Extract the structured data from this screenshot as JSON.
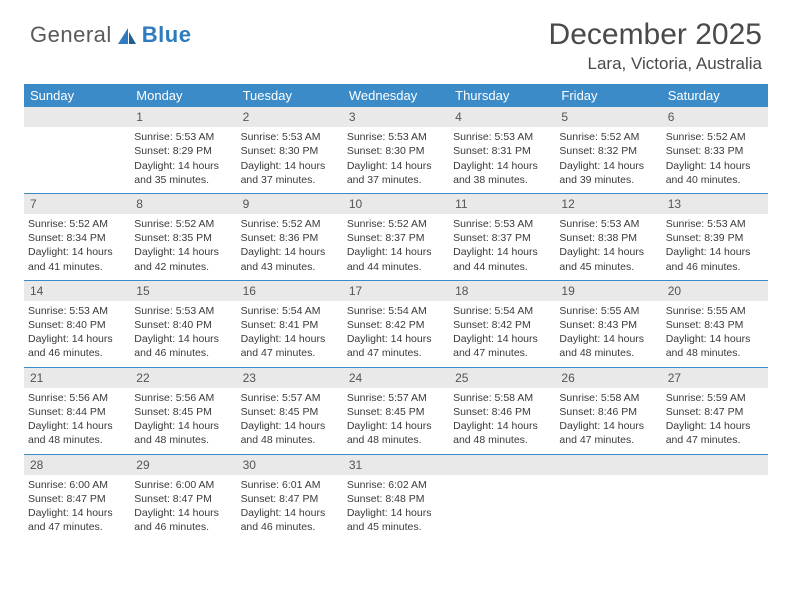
{
  "logo": {
    "part1": "General",
    "part2": "Blue"
  },
  "title": "December 2025",
  "location": "Lara, Victoria, Australia",
  "colors": {
    "header_bg": "#3b8bc9",
    "header_text": "#ffffff",
    "daynum_bg": "#e9e9e9",
    "separator": "#3b8bc9",
    "text": "#3a3a3a",
    "logo_gray": "#5a5a5a",
    "logo_blue": "#2f7bbf"
  },
  "day_headers": [
    "Sunday",
    "Monday",
    "Tuesday",
    "Wednesday",
    "Thursday",
    "Friday",
    "Saturday"
  ],
  "weeks": [
    [
      null,
      {
        "n": "1",
        "sr": "Sunrise: 5:53 AM",
        "ss": "Sunset: 8:29 PM",
        "d1": "Daylight: 14 hours",
        "d2": "and 35 minutes."
      },
      {
        "n": "2",
        "sr": "Sunrise: 5:53 AM",
        "ss": "Sunset: 8:30 PM",
        "d1": "Daylight: 14 hours",
        "d2": "and 37 minutes."
      },
      {
        "n": "3",
        "sr": "Sunrise: 5:53 AM",
        "ss": "Sunset: 8:30 PM",
        "d1": "Daylight: 14 hours",
        "d2": "and 37 minutes."
      },
      {
        "n": "4",
        "sr": "Sunrise: 5:53 AM",
        "ss": "Sunset: 8:31 PM",
        "d1": "Daylight: 14 hours",
        "d2": "and 38 minutes."
      },
      {
        "n": "5",
        "sr": "Sunrise: 5:52 AM",
        "ss": "Sunset: 8:32 PM",
        "d1": "Daylight: 14 hours",
        "d2": "and 39 minutes."
      },
      {
        "n": "6",
        "sr": "Sunrise: 5:52 AM",
        "ss": "Sunset: 8:33 PM",
        "d1": "Daylight: 14 hours",
        "d2": "and 40 minutes."
      }
    ],
    [
      {
        "n": "7",
        "sr": "Sunrise: 5:52 AM",
        "ss": "Sunset: 8:34 PM",
        "d1": "Daylight: 14 hours",
        "d2": "and 41 minutes."
      },
      {
        "n": "8",
        "sr": "Sunrise: 5:52 AM",
        "ss": "Sunset: 8:35 PM",
        "d1": "Daylight: 14 hours",
        "d2": "and 42 minutes."
      },
      {
        "n": "9",
        "sr": "Sunrise: 5:52 AM",
        "ss": "Sunset: 8:36 PM",
        "d1": "Daylight: 14 hours",
        "d2": "and 43 minutes."
      },
      {
        "n": "10",
        "sr": "Sunrise: 5:52 AM",
        "ss": "Sunset: 8:37 PM",
        "d1": "Daylight: 14 hours",
        "d2": "and 44 minutes."
      },
      {
        "n": "11",
        "sr": "Sunrise: 5:53 AM",
        "ss": "Sunset: 8:37 PM",
        "d1": "Daylight: 14 hours",
        "d2": "and 44 minutes."
      },
      {
        "n": "12",
        "sr": "Sunrise: 5:53 AM",
        "ss": "Sunset: 8:38 PM",
        "d1": "Daylight: 14 hours",
        "d2": "and 45 minutes."
      },
      {
        "n": "13",
        "sr": "Sunrise: 5:53 AM",
        "ss": "Sunset: 8:39 PM",
        "d1": "Daylight: 14 hours",
        "d2": "and 46 minutes."
      }
    ],
    [
      {
        "n": "14",
        "sr": "Sunrise: 5:53 AM",
        "ss": "Sunset: 8:40 PM",
        "d1": "Daylight: 14 hours",
        "d2": "and 46 minutes."
      },
      {
        "n": "15",
        "sr": "Sunrise: 5:53 AM",
        "ss": "Sunset: 8:40 PM",
        "d1": "Daylight: 14 hours",
        "d2": "and 46 minutes."
      },
      {
        "n": "16",
        "sr": "Sunrise: 5:54 AM",
        "ss": "Sunset: 8:41 PM",
        "d1": "Daylight: 14 hours",
        "d2": "and 47 minutes."
      },
      {
        "n": "17",
        "sr": "Sunrise: 5:54 AM",
        "ss": "Sunset: 8:42 PM",
        "d1": "Daylight: 14 hours",
        "d2": "and 47 minutes."
      },
      {
        "n": "18",
        "sr": "Sunrise: 5:54 AM",
        "ss": "Sunset: 8:42 PM",
        "d1": "Daylight: 14 hours",
        "d2": "and 47 minutes."
      },
      {
        "n": "19",
        "sr": "Sunrise: 5:55 AM",
        "ss": "Sunset: 8:43 PM",
        "d1": "Daylight: 14 hours",
        "d2": "and 48 minutes."
      },
      {
        "n": "20",
        "sr": "Sunrise: 5:55 AM",
        "ss": "Sunset: 8:43 PM",
        "d1": "Daylight: 14 hours",
        "d2": "and 48 minutes."
      }
    ],
    [
      {
        "n": "21",
        "sr": "Sunrise: 5:56 AM",
        "ss": "Sunset: 8:44 PM",
        "d1": "Daylight: 14 hours",
        "d2": "and 48 minutes."
      },
      {
        "n": "22",
        "sr": "Sunrise: 5:56 AM",
        "ss": "Sunset: 8:45 PM",
        "d1": "Daylight: 14 hours",
        "d2": "and 48 minutes."
      },
      {
        "n": "23",
        "sr": "Sunrise: 5:57 AM",
        "ss": "Sunset: 8:45 PM",
        "d1": "Daylight: 14 hours",
        "d2": "and 48 minutes."
      },
      {
        "n": "24",
        "sr": "Sunrise: 5:57 AM",
        "ss": "Sunset: 8:45 PM",
        "d1": "Daylight: 14 hours",
        "d2": "and 48 minutes."
      },
      {
        "n": "25",
        "sr": "Sunrise: 5:58 AM",
        "ss": "Sunset: 8:46 PM",
        "d1": "Daylight: 14 hours",
        "d2": "and 48 minutes."
      },
      {
        "n": "26",
        "sr": "Sunrise: 5:58 AM",
        "ss": "Sunset: 8:46 PM",
        "d1": "Daylight: 14 hours",
        "d2": "and 47 minutes."
      },
      {
        "n": "27",
        "sr": "Sunrise: 5:59 AM",
        "ss": "Sunset: 8:47 PM",
        "d1": "Daylight: 14 hours",
        "d2": "and 47 minutes."
      }
    ],
    [
      {
        "n": "28",
        "sr": "Sunrise: 6:00 AM",
        "ss": "Sunset: 8:47 PM",
        "d1": "Daylight: 14 hours",
        "d2": "and 47 minutes."
      },
      {
        "n": "29",
        "sr": "Sunrise: 6:00 AM",
        "ss": "Sunset: 8:47 PM",
        "d1": "Daylight: 14 hours",
        "d2": "and 46 minutes."
      },
      {
        "n": "30",
        "sr": "Sunrise: 6:01 AM",
        "ss": "Sunset: 8:47 PM",
        "d1": "Daylight: 14 hours",
        "d2": "and 46 minutes."
      },
      {
        "n": "31",
        "sr": "Sunrise: 6:02 AM",
        "ss": "Sunset: 8:48 PM",
        "d1": "Daylight: 14 hours",
        "d2": "and 45 minutes."
      },
      null,
      null,
      null
    ]
  ]
}
